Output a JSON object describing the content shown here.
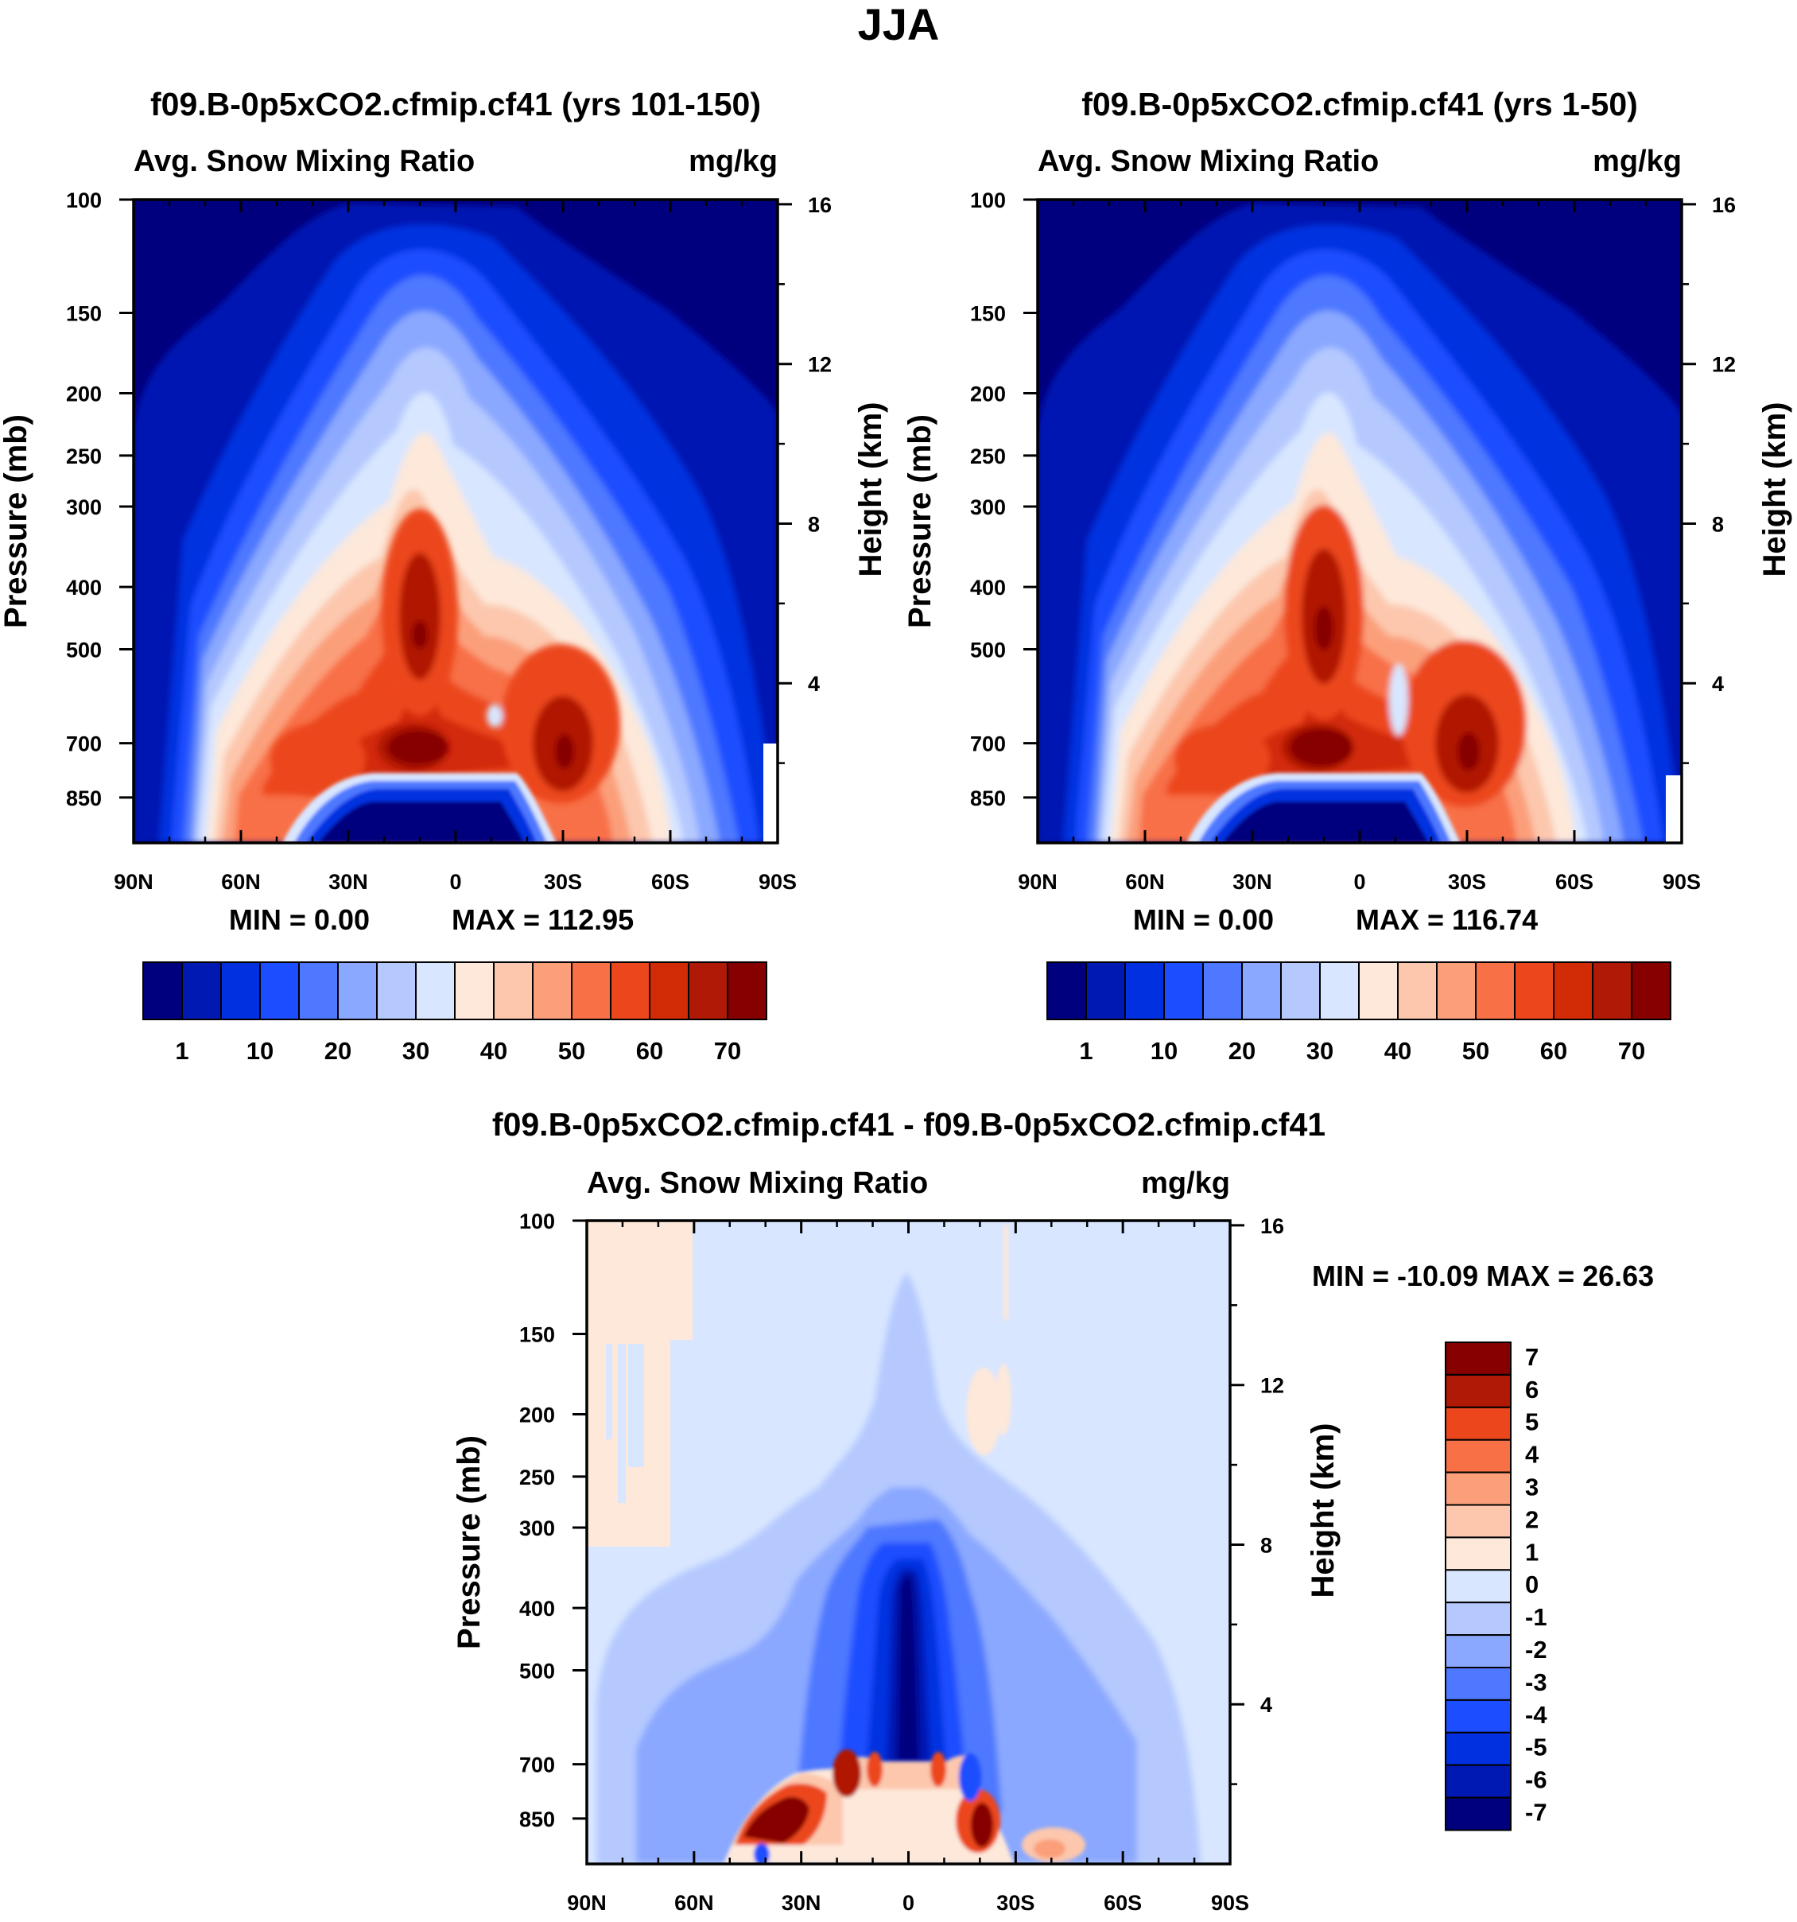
{
  "page": {
    "title": "JJA"
  },
  "colors": {
    "mean_levels": [
      "#00007f",
      "#0019b2",
      "#0030e0",
      "#1c4dff",
      "#4d78ff",
      "#8aa8ff",
      "#b5c9ff",
      "#d8e6ff",
      "#fde8da",
      "#fcc7ad",
      "#fb9f7a",
      "#f87046",
      "#ec461c",
      "#d22c07",
      "#b01905",
      "#860000"
    ],
    "diff_levels": [
      "#00007f",
      "#0019b2",
      "#0030e0",
      "#1c4dff",
      "#4d78ff",
      "#8aa8ff",
      "#b5c9ff",
      "#d8e6ff",
      "#fde8da",
      "#fcc7ad",
      "#fb9f7a",
      "#f87046",
      "#ec461c",
      "#b01905",
      "#860000"
    ]
  },
  "chart_data": [
    {
      "type": "heatmap",
      "title": "f09.B-0p5xCO2.cfmip.cf41 (yrs 101-150)",
      "left_label": "Avg. Snow Mixing Ratio",
      "right_label": "mg/kg",
      "ylabel": "Pressure (mb)",
      "ylabel_right": "Height (km)",
      "xlim": [
        90,
        -90
      ],
      "ylim": [
        1000,
        100
      ],
      "x_ticks": [
        90,
        60,
        30,
        0,
        -30,
        -60,
        -90
      ],
      "x_tick_labels": [
        "90N",
        "60N",
        "30N",
        "0",
        "30S",
        "60S",
        "90S"
      ],
      "y_ticks": [
        100,
        150,
        200,
        250,
        300,
        400,
        500,
        700,
        850
      ],
      "y_tick_labels": [
        "100",
        "150",
        "200",
        "250",
        "300",
        "400",
        "500",
        "700",
        "850"
      ],
      "y_right_ticks": [
        16,
        12,
        8,
        4
      ],
      "y_right_tick_labels": [
        "16",
        "12",
        "8",
        "4"
      ],
      "min_label": "MIN =    0.00",
      "max_label": "MAX = 112.95",
      "colorbar": {
        "orientation": "horizontal",
        "levels": [
          1,
          5,
          10,
          15,
          20,
          25,
          30,
          35,
          40,
          45,
          50,
          55,
          60,
          65,
          70
        ],
        "labels": [
          "1",
          "10",
          "20",
          "30",
          "40",
          "50",
          "60",
          "70"
        ]
      },
      "field": {
        "description_note": "zonal-mean snow mixing ratio (mg/kg), peak near 700 mb 10N",
        "features": [
          {
            "lat": 10,
            "p": 690,
            "value": 112.95
          },
          {
            "lat": 10,
            "p": 430,
            "value": 75
          },
          {
            "lat": -30,
            "p": 620,
            "value": 72
          },
          {
            "lat": 38,
            "p": 680,
            "value": 60
          }
        ]
      }
    },
    {
      "type": "heatmap",
      "title": "f09.B-0p5xCO2.cfmip.cf41 (yrs 1-50)",
      "left_label": "Avg. Snow Mixing Ratio",
      "right_label": "mg/kg",
      "ylabel": "Pressure (mb)",
      "ylabel_right": "Height (km)",
      "xlim": [
        90,
        -90
      ],
      "ylim": [
        1000,
        100
      ],
      "x_ticks": [
        90,
        60,
        30,
        0,
        -30,
        -60,
        -90
      ],
      "x_tick_labels": [
        "90N",
        "60N",
        "30N",
        "0",
        "30S",
        "60S",
        "90S"
      ],
      "y_ticks": [
        100,
        150,
        200,
        250,
        300,
        400,
        500,
        700,
        850
      ],
      "y_tick_labels": [
        "100",
        "150",
        "200",
        "250",
        "300",
        "400",
        "500",
        "700",
        "850"
      ],
      "y_right_ticks": [
        16,
        12,
        8,
        4
      ],
      "y_right_tick_labels": [
        "16",
        "12",
        "8",
        "4"
      ],
      "min_label": "MIN =    0.00",
      "max_label": "MAX = 116.74",
      "colorbar": {
        "orientation": "horizontal",
        "levels": [
          1,
          5,
          10,
          15,
          20,
          25,
          30,
          35,
          40,
          45,
          50,
          55,
          60,
          65,
          70
        ],
        "labels": [
          "1",
          "10",
          "20",
          "30",
          "40",
          "50",
          "60",
          "70"
        ]
      },
      "field": {
        "description_note": "zonal-mean snow mixing ratio (mg/kg), peak near 700 mb 10N",
        "features": [
          {
            "lat": 10,
            "p": 690,
            "value": 116.74
          },
          {
            "lat": 10,
            "p": 440,
            "value": 80
          },
          {
            "lat": -30,
            "p": 620,
            "value": 76
          },
          {
            "lat": 38,
            "p": 680,
            "value": 62
          }
        ]
      }
    },
    {
      "type": "heatmap",
      "title": "f09.B-0p5xCO2.cfmip.cf41 - f09.B-0p5xCO2.cfmip.cf41",
      "left_label": "Avg. Snow Mixing Ratio",
      "right_label": "mg/kg",
      "ylabel": "Pressure (mb)",
      "ylabel_right": "Height (km)",
      "xlim": [
        90,
        -90
      ],
      "ylim": [
        1000,
        100
      ],
      "x_ticks": [
        90,
        60,
        30,
        0,
        -30,
        -60,
        -90
      ],
      "x_tick_labels": [
        "90N",
        "60N",
        "30N",
        "0",
        "30S",
        "60S",
        "90S"
      ],
      "y_ticks": [
        100,
        150,
        200,
        250,
        300,
        400,
        500,
        700,
        850
      ],
      "y_tick_labels": [
        "100",
        "150",
        "200",
        "250",
        "300",
        "400",
        "500",
        "700",
        "850"
      ],
      "y_right_ticks": [
        16,
        12,
        8,
        4
      ],
      "y_right_tick_labels": [
        "16",
        "12",
        "8",
        "4"
      ],
      "minmax_label": "MIN = -10.09  MAX =  26.63",
      "colorbar": {
        "orientation": "vertical",
        "levels": [
          -7,
          -6,
          -5,
          -4,
          -3,
          -2,
          -1,
          0,
          1,
          2,
          3,
          4,
          5,
          6,
          7
        ],
        "labels": [
          "7",
          "6",
          "5",
          "4",
          "3",
          "2",
          "1",
          "0",
          "-1",
          "-2",
          "-3",
          "-4",
          "-5",
          "-6",
          "-7"
        ]
      },
      "field": {
        "description_note": "difference field, negative column near equator, positive dipoles near 800 mb",
        "features": [
          {
            "lat": 0,
            "p": 450,
            "value": -10.09
          },
          {
            "lat": 35,
            "p": 790,
            "value": 26.63
          },
          {
            "lat": -17,
            "p": 800,
            "value": 8
          }
        ]
      }
    }
  ]
}
